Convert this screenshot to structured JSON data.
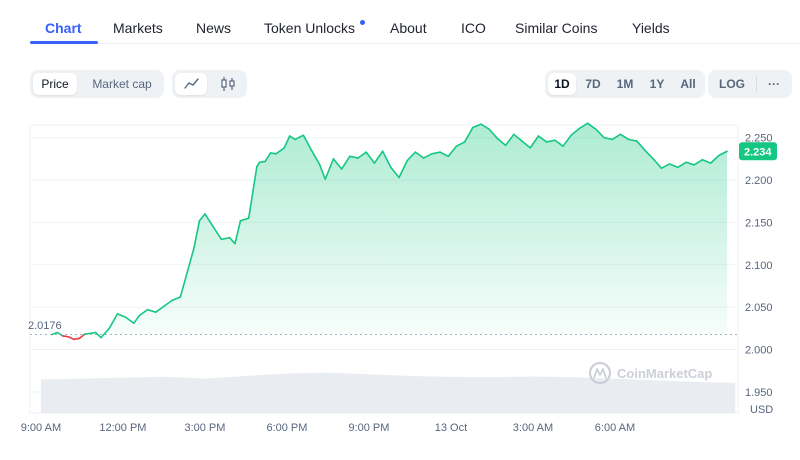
{
  "tabs": [
    {
      "label": "Chart",
      "active": true
    },
    {
      "label": "Markets"
    },
    {
      "label": "News"
    },
    {
      "label": "Token Unlocks",
      "has_dot": true
    },
    {
      "label": "About"
    },
    {
      "label": "ICO"
    },
    {
      "label": "Similar Coins"
    },
    {
      "label": "Yields"
    }
  ],
  "view_toggle": {
    "options": [
      "Price",
      "Market cap"
    ],
    "selected": "Price"
  },
  "chart_style": {
    "options": [
      "line-chart-icon",
      "candlestick-icon"
    ],
    "selected": "line-chart-icon"
  },
  "ranges": {
    "options": [
      "1D",
      "7D",
      "1M",
      "1Y",
      "All"
    ],
    "selected": "1D"
  },
  "log_label": "LOG",
  "more_label": "···",
  "watermark": "CoinMarketCap",
  "colors": {
    "up": "#16c784",
    "down": "#ea3943",
    "accent": "#3861fb"
  },
  "chart_data": {
    "type": "area",
    "currency": "USD",
    "open_price_label": "2.0176",
    "current_price_label": "2.234",
    "open_price": 2.0176,
    "ylim": [
      1.925,
      2.265
    ],
    "yticks": [
      "2.250",
      "2.200",
      "2.150",
      "2.100",
      "2.050",
      "2.000",
      "1.950"
    ],
    "ytick_values": [
      2.25,
      2.2,
      2.15,
      2.1,
      2.05,
      2.0,
      1.95
    ],
    "xticks": [
      "9:00 AM",
      "12:00 PM",
      "3:00 PM",
      "6:00 PM",
      "9:00 PM",
      "13 Oct",
      "3:00 AM",
      "6:00 AM"
    ],
    "xtick_hours": [
      9,
      12,
      15,
      18,
      21,
      24,
      27,
      30
    ],
    "xlim_hours": [
      8.6,
      34.5
    ],
    "series": [
      {
        "x_hours": [
          9.4,
          9.6,
          9.8,
          10.0,
          10.2,
          10.4,
          10.6,
          10.8,
          11.0,
          11.2,
          11.5,
          11.8,
          12.1,
          12.4,
          12.6,
          12.9,
          13.2,
          13.5,
          13.8,
          14.1,
          14.3,
          14.6,
          14.8,
          15.0,
          15.3,
          15.6,
          15.9,
          16.1,
          16.3,
          16.6,
          16.9,
          17.0,
          17.2,
          17.4,
          17.6,
          17.9,
          18.1,
          18.3,
          18.6,
          18.9,
          19.2,
          19.4,
          19.7,
          20.0,
          20.3,
          20.6,
          20.9,
          21.2,
          21.5,
          21.8,
          22.1,
          22.4,
          22.7,
          23.0,
          23.3,
          23.6,
          23.9,
          24.2,
          24.5,
          24.8,
          25.1,
          25.4,
          25.7,
          26.0,
          26.3,
          26.6,
          26.9,
          27.2,
          27.5,
          27.8,
          28.1,
          28.4,
          28.7,
          29.0,
          29.3,
          29.6,
          29.9,
          30.2,
          30.5,
          30.8,
          31.1,
          31.4,
          31.7,
          32.0,
          32.3,
          32.6,
          32.9,
          33.2,
          33.5,
          33.8,
          34.1
        ],
        "values": [
          2.0176,
          2.02,
          2.016,
          2.015,
          2.012,
          2.013,
          2.018,
          2.019,
          2.02,
          2.014,
          2.025,
          2.042,
          2.038,
          2.031,
          2.04,
          2.047,
          2.044,
          2.051,
          2.058,
          2.062,
          2.085,
          2.12,
          2.152,
          2.16,
          2.145,
          2.13,
          2.132,
          2.125,
          2.152,
          2.155,
          2.216,
          2.221,
          2.222,
          2.232,
          2.231,
          2.238,
          2.252,
          2.248,
          2.253,
          2.235,
          2.218,
          2.201,
          2.225,
          2.213,
          2.228,
          2.226,
          2.233,
          2.22,
          2.234,
          2.215,
          2.203,
          2.223,
          2.233,
          2.226,
          2.231,
          2.233,
          2.228,
          2.24,
          2.245,
          2.262,
          2.266,
          2.26,
          2.249,
          2.241,
          2.254,
          2.246,
          2.238,
          2.252,
          2.245,
          2.247,
          2.24,
          2.253,
          2.261,
          2.267,
          2.26,
          2.25,
          2.248,
          2.254,
          2.248,
          2.246,
          2.235,
          2.225,
          2.214,
          2.219,
          2.215,
          2.221,
          2.218,
          2.224,
          2.22,
          2.229,
          2.234
        ]
      }
    ],
    "volume": {
      "x_hours": [
        9.0,
        10.5,
        12.0,
        13.5,
        15.0,
        16.5,
        18.0,
        19.5,
        21.0,
        22.5,
        24.0,
        25.5,
        27.0,
        28.5,
        30.0,
        31.5,
        33.0,
        34.4
      ],
      "relative": [
        0.78,
        0.8,
        0.82,
        0.84,
        0.8,
        0.86,
        0.92,
        0.94,
        0.9,
        0.86,
        0.84,
        0.83,
        0.85,
        0.83,
        0.8,
        0.76,
        0.72,
        0.7
      ]
    }
  }
}
